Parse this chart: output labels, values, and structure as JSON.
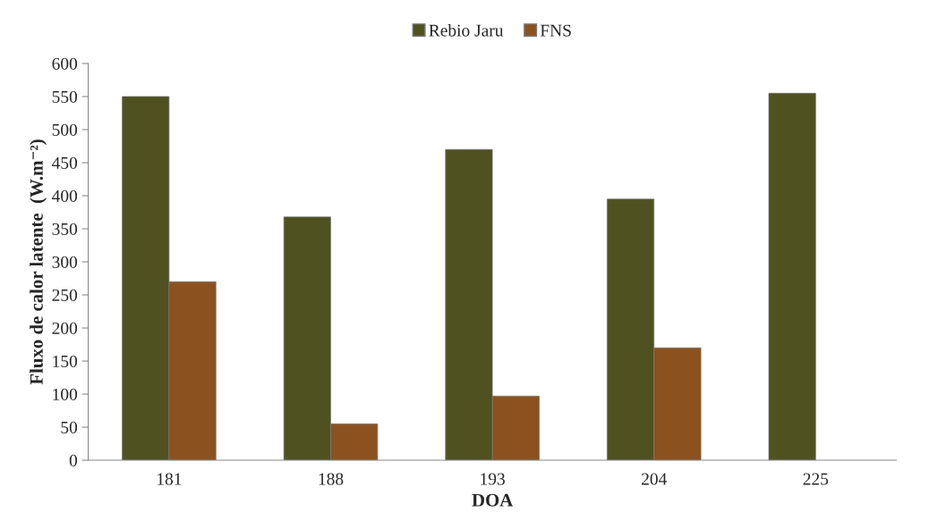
{
  "chart_data": {
    "type": "bar",
    "xlabel": "DOA",
    "ylabel": "Fluxo de calor latente  (W.m⁻²)",
    "categories": [
      "181",
      "188",
      "193",
      "204",
      "225"
    ],
    "series": [
      {
        "name": "Rebio Jaru",
        "color": "#4f5220",
        "values": [
          550,
          368,
          470,
          395,
          555
        ]
      },
      {
        "name": "FNS",
        "color": "#8b5220",
        "values": [
          270,
          55,
          97,
          170,
          null
        ]
      }
    ],
    "ylim": [
      0,
      600
    ],
    "yticks": [
      0,
      50,
      100,
      150,
      200,
      250,
      300,
      350,
      400,
      450,
      500,
      550,
      600
    ],
    "grid": false,
    "legend": "top"
  }
}
